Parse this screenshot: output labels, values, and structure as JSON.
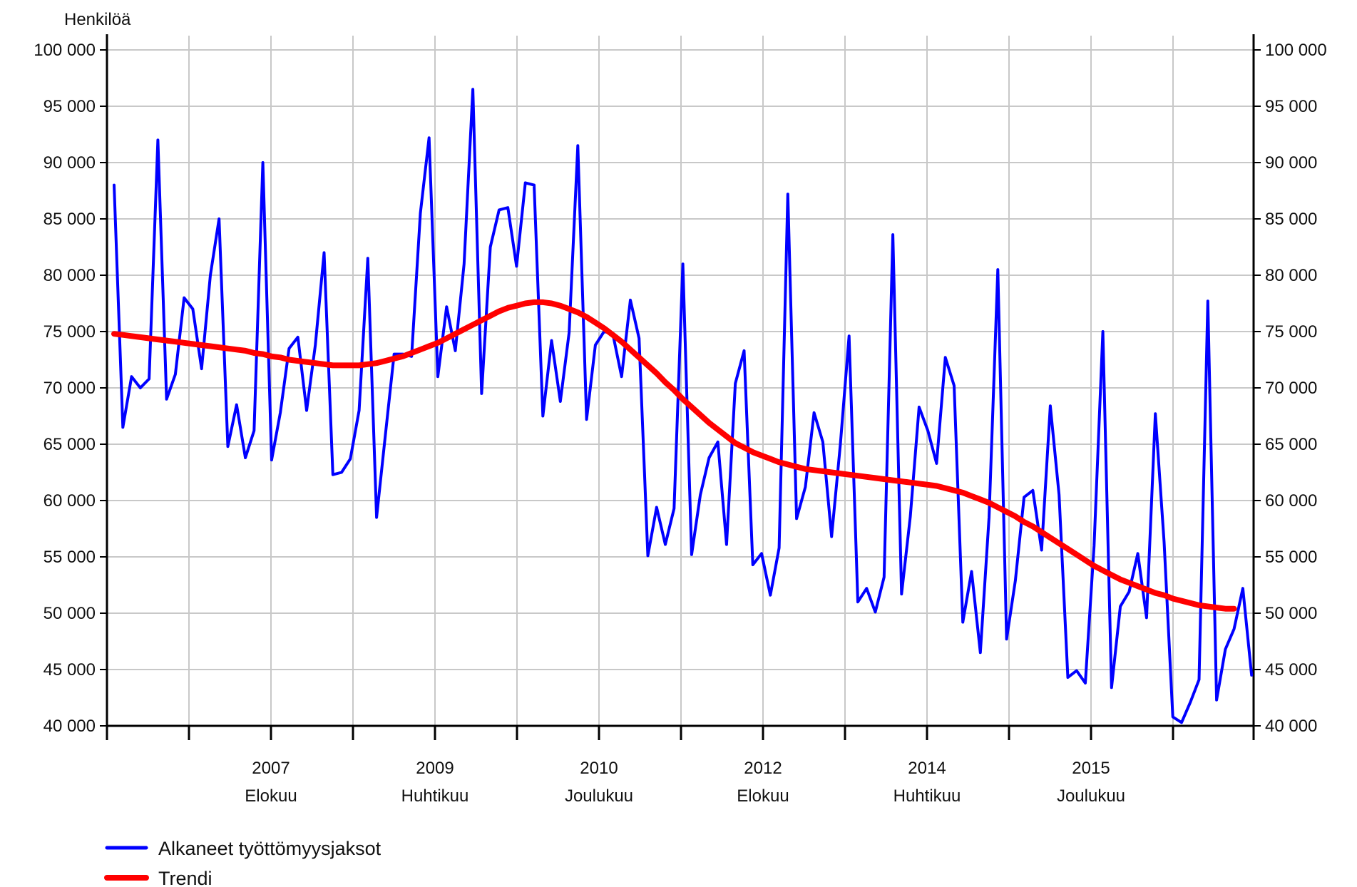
{
  "chart_data": {
    "type": "line",
    "ylabel": "Henkilöä",
    "ylim": [
      40000,
      100000
    ],
    "y_ticks": [
      "100 000",
      "95 000",
      "90 000",
      "85 000",
      "80 000",
      "75 000",
      "70 000",
      "65 000",
      "60 000",
      "55 000",
      "50 000",
      "45 000",
      "40 000"
    ],
    "y_tick_values": [
      100000,
      95000,
      90000,
      85000,
      80000,
      75000,
      70000,
      65000,
      60000,
      55000,
      50000,
      45000,
      40000
    ],
    "x_start": "2006-01",
    "x_end": "2016-03",
    "x_ticks": [
      {
        "year": "2007",
        "month": "Elokuu"
      },
      {
        "year": "2009",
        "month": "Huhtikuu"
      },
      {
        "year": "2010",
        "month": "Joulukuu"
      },
      {
        "year": "2012",
        "month": "Elokuu"
      },
      {
        "year": "2014",
        "month": "Huhtikuu"
      },
      {
        "year": "2015",
        "month": "Joulukuu"
      }
    ],
    "grid": true,
    "legend": "bottom-left",
    "series": [
      {
        "name": "Alkaneet työttömyysjaksot",
        "color": "#0000ff",
        "values": [
          88000,
          66500,
          71000,
          70000,
          70800,
          92000,
          69000,
          71200,
          78000,
          77000,
          71700,
          80000,
          85000,
          64800,
          68500,
          63800,
          66200,
          90000,
          63600,
          67800,
          73500,
          74500,
          68000,
          73800,
          82000,
          62300,
          62500,
          63700,
          68000,
          81500,
          58500,
          65800,
          73000,
          73000,
          72800,
          85500,
          92200,
          71000,
          77200,
          73300,
          81000,
          96500,
          69500,
          82500,
          85800,
          86000,
          80800,
          88200,
          88000,
          67500,
          74200,
          68800,
          74900,
          91500,
          67200,
          73800,
          75000,
          74800,
          71000,
          77800,
          74400,
          55100,
          59400,
          56100,
          59300,
          81000,
          55200,
          60500,
          63800,
          65200,
          56100,
          70400,
          73300,
          54300,
          55300,
          51600,
          55800,
          87200,
          58400,
          61200,
          67800,
          65200,
          56800,
          65000,
          74600,
          51000,
          52200,
          50100,
          53200,
          83600,
          51700,
          58600,
          68300,
          66200,
          63300,
          72700,
          70200,
          49200,
          53700,
          46500,
          58500,
          80500,
          47700,
          52900,
          60300,
          60900,
          55600,
          68400,
          60500,
          44300,
          44900,
          43800,
          56000,
          75000,
          43400,
          50600,
          51900,
          55300,
          49600,
          67700,
          56300,
          40800,
          40300,
          42100,
          44100,
          77700,
          42300,
          46800,
          48600,
          52200,
          44500
        ],
        "trend": false
      },
      {
        "name": "Trendi",
        "color": "#ff0000",
        "values": [
          74800,
          74700,
          74600,
          74500,
          74400,
          74300,
          74200,
          74100,
          74000,
          73900,
          73800,
          73700,
          73600,
          73500,
          73400,
          73300,
          73100,
          73000,
          72800,
          72700,
          72500,
          72400,
          72300,
          72200,
          72100,
          72000,
          72000,
          72000,
          72000,
          72100,
          72200,
          72400,
          72600,
          72800,
          73100,
          73400,
          73700,
          74000,
          74400,
          74800,
          75200,
          75600,
          76000,
          76400,
          76800,
          77100,
          77300,
          77500,
          77600,
          77600,
          77500,
          77300,
          77000,
          76700,
          76300,
          75800,
          75300,
          74700,
          74100,
          73400,
          72700,
          72000,
          71300,
          70500,
          69800,
          69000,
          68300,
          67600,
          66900,
          66300,
          65700,
          65100,
          64700,
          64300,
          64000,
          63700,
          63400,
          63200,
          63000,
          62800,
          62700,
          62600,
          62500,
          62400,
          62300,
          62200,
          62100,
          62000,
          61900,
          61800,
          61700,
          61600,
          61500,
          61400,
          61300,
          61100,
          60900,
          60700,
          60400,
          60100,
          59800,
          59400,
          59000,
          58600,
          58100,
          57700,
          57200,
          56700,
          56200,
          55700,
          55200,
          54700,
          54200,
          53800,
          53400,
          53000,
          52700,
          52400,
          52100,
          51800,
          51600,
          51300,
          51100,
          50900,
          50700,
          50600,
          50500,
          50400,
          50400
        ]
      }
    ]
  }
}
